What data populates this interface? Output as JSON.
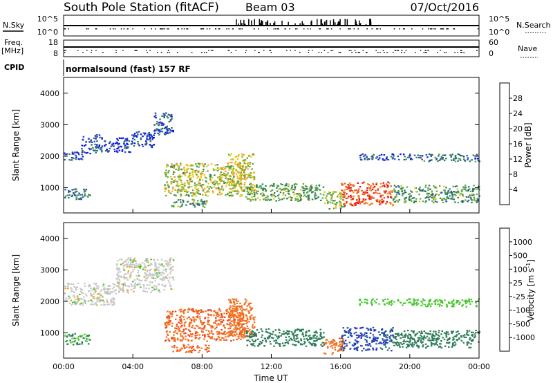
{
  "header": {
    "station": "South Pole Station (fitACF)",
    "beam": "Beam 03",
    "date": "07/Oct/2016"
  },
  "summary": {
    "nsky_label": "N.Sky",
    "nsky_ticks": [
      "10^5",
      "10^0"
    ],
    "nsearch_label": "N.Search",
    "nsearch_ticks": [
      "10^5",
      "10^0"
    ],
    "freq_label": "Freq.",
    "freq_unit": "[MHz]",
    "freq_ticks": [
      "18",
      "8"
    ],
    "nave_label": "Nave",
    "nave_ticks": [
      "60",
      "0"
    ],
    "cpid_label": "CPID",
    "cpid_text": "normalsound (fast) 157 RF"
  },
  "chart_data": [
    {
      "type": "heatmap",
      "panel": "power",
      "ylabel": "Slant Range [km]",
      "xlabel": "",
      "y_ticks": [
        1000,
        2000,
        3000,
        4000
      ],
      "ylim": [
        200,
        4500
      ],
      "x_ticks": [
        "00:00",
        "04:00",
        "08:00",
        "12:00",
        "16:00",
        "20:00",
        "00:00"
      ],
      "xlim_hours": [
        0,
        24
      ],
      "colorbar": {
        "label": "Power [dB]",
        "ticks": [
          "4",
          "8",
          "12",
          "16",
          "20",
          "24",
          "28"
        ],
        "colors": [
          "#0a14f0",
          "#2e50a8",
          "#2e7d5a",
          "#5aaa46",
          "#e8c21a",
          "#f09020",
          "#f05a1a",
          "#e81010"
        ]
      },
      "regions": [
        {
          "t0": 0.0,
          "t1": 1.5,
          "r0": 650,
          "r1": 1000,
          "v": 9
        },
        {
          "t0": 0.0,
          "t1": 1.2,
          "r0": 1900,
          "r1": 2150,
          "v": 6
        },
        {
          "t0": 1.0,
          "t1": 2.2,
          "r0": 2100,
          "r1": 2700,
          "v": 6
        },
        {
          "t0": 2.3,
          "t1": 3.8,
          "r0": 2150,
          "r1": 2600,
          "v": 5
        },
        {
          "t0": 3.8,
          "t1": 5.2,
          "r0": 2300,
          "r1": 2800,
          "v": 5
        },
        {
          "t0": 5.2,
          "t1": 6.3,
          "r0": 2700,
          "r1": 3400,
          "v": 6
        },
        {
          "t0": 5.8,
          "t1": 10.5,
          "r0": 750,
          "r1": 1800,
          "v": 16
        },
        {
          "t0": 6.2,
          "t1": 8.4,
          "r0": 400,
          "r1": 650,
          "v": 12
        },
        {
          "t0": 9.5,
          "t1": 11.0,
          "r0": 900,
          "r1": 2100,
          "v": 17
        },
        {
          "t0": 10.5,
          "t1": 15.0,
          "r0": 600,
          "r1": 1150,
          "v": 13
        },
        {
          "t0": 15.0,
          "t1": 16.2,
          "r0": 350,
          "r1": 900,
          "v": 15
        },
        {
          "t0": 16.0,
          "t1": 19.0,
          "r0": 450,
          "r1": 1200,
          "v": 27
        },
        {
          "t0": 19.0,
          "t1": 24.0,
          "r0": 550,
          "r1": 1100,
          "v": 12
        },
        {
          "t0": 17.0,
          "t1": 20.5,
          "r0": 1900,
          "r1": 2100,
          "v": 6
        },
        {
          "t0": 20.5,
          "t1": 24.0,
          "r0": 1850,
          "r1": 2100,
          "v": 8
        }
      ]
    },
    {
      "type": "heatmap",
      "panel": "velocity",
      "ylabel": "Slant Range [km]",
      "xlabel": "Time UT",
      "y_ticks": [
        1000,
        2000,
        3000,
        4000
      ],
      "ylim": [
        200,
        4500
      ],
      "x_ticks": [
        "00:00",
        "04:00",
        "08:00",
        "12:00",
        "16:00",
        "20:00",
        "00:00"
      ],
      "xlim_hours": [
        0,
        24
      ],
      "colorbar": {
        "label": "Velocity [m s",
        "label_sup": "-1",
        "label_end": "]",
        "ticks": [
          "1000",
          "500",
          "100",
          "25",
          "-25",
          "-100",
          "-500",
          "-1000"
        ],
        "colors": [
          "#1428d8",
          "#2e50a8",
          "#2e7d5a",
          "#46c82e",
          "#c8c8c8",
          "#f0a000",
          "#f07020",
          "#f03c1e",
          "#e81010"
        ]
      },
      "regions": [
        {
          "t0": 0.0,
          "t1": 1.5,
          "r0": 650,
          "r1": 1000,
          "v": 100
        },
        {
          "t0": 0.0,
          "t1": 3.0,
          "r0": 1900,
          "r1": 2600,
          "v": 0
        },
        {
          "t0": 3.0,
          "t1": 6.3,
          "r0": 2300,
          "r1": 3400,
          "v": 0
        },
        {
          "t0": 5.8,
          "t1": 10.5,
          "r0": 750,
          "r1": 1800,
          "v": -400
        },
        {
          "t0": 6.2,
          "t1": 8.4,
          "r0": 400,
          "r1": 650,
          "v": -400
        },
        {
          "t0": 9.5,
          "t1": 11.0,
          "r0": 900,
          "r1": 2100,
          "v": -300
        },
        {
          "t0": 10.5,
          "t1": 15.0,
          "r0": 600,
          "r1": 1150,
          "v": 200
        },
        {
          "t0": 15.0,
          "t1": 16.2,
          "r0": 350,
          "r1": 900,
          "v": -200
        },
        {
          "t0": 16.0,
          "t1": 19.0,
          "r0": 450,
          "r1": 1200,
          "v": 800
        },
        {
          "t0": 19.0,
          "t1": 24.0,
          "r0": 550,
          "r1": 1100,
          "v": 300
        },
        {
          "t0": 17.0,
          "t1": 20.5,
          "r0": 1900,
          "r1": 2100,
          "v": 60
        },
        {
          "t0": 20.5,
          "t1": 24.0,
          "r0": 1850,
          "r1": 2100,
          "v": 60
        }
      ]
    }
  ]
}
